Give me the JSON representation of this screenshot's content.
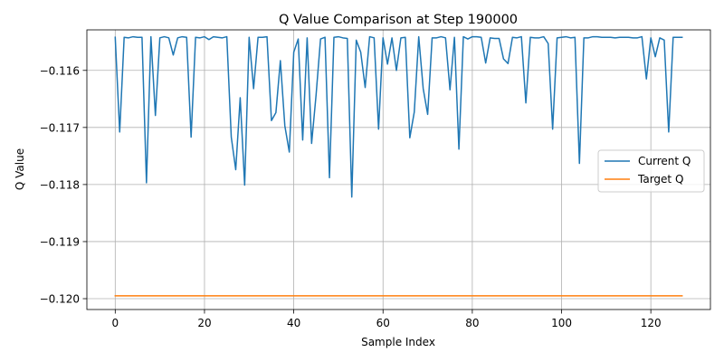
{
  "chart_data": {
    "type": "line",
    "title": "Q Value Comparison at Step 190000",
    "xlabel": "Sample Index",
    "ylabel": "Q Value",
    "xlim": [
      -6.35,
      133.35
    ],
    "ylim": [
      -0.12019,
      -0.11529
    ],
    "xticks": [
      0,
      20,
      40,
      60,
      80,
      100,
      120
    ],
    "xtick_labels": [
      "0",
      "20",
      "40",
      "60",
      "80",
      "100",
      "120"
    ],
    "yticks": [
      -0.12,
      -0.119,
      -0.118,
      -0.117,
      -0.116
    ],
    "ytick_labels": [
      "−0.120",
      "−0.119",
      "−0.118",
      "−0.117",
      "−0.116"
    ],
    "grid": true,
    "legend_position": "center-right",
    "series": [
      {
        "name": "Current Q",
        "color": "#1f77b4",
        "x_start": 0,
        "values": [
          -0.11542,
          -0.11708,
          -0.11542,
          -0.11543,
          -0.11541,
          -0.11542,
          -0.11542,
          -0.11797,
          -0.11541,
          -0.11679,
          -0.11543,
          -0.11541,
          -0.11543,
          -0.11573,
          -0.11543,
          -0.11541,
          -0.11542,
          -0.11717,
          -0.11542,
          -0.11543,
          -0.11541,
          -0.11546,
          -0.11541,
          -0.11542,
          -0.11543,
          -0.11541,
          -0.11717,
          -0.11774,
          -0.11648,
          -0.11801,
          -0.11542,
          -0.11632,
          -0.11542,
          -0.11542,
          -0.11541,
          -0.11688,
          -0.11674,
          -0.11583,
          -0.11697,
          -0.11743,
          -0.11568,
          -0.11545,
          -0.11722,
          -0.11543,
          -0.11728,
          -0.11643,
          -0.11545,
          -0.11542,
          -0.11788,
          -0.11542,
          -0.11541,
          -0.11543,
          -0.11544,
          -0.11822,
          -0.11547,
          -0.11568,
          -0.1163,
          -0.11541,
          -0.11543,
          -0.11703,
          -0.11543,
          -0.11589,
          -0.11543,
          -0.116,
          -0.11543,
          -0.11542,
          -0.11718,
          -0.11673,
          -0.11541,
          -0.11632,
          -0.11677,
          -0.11543,
          -0.11543,
          -0.11541,
          -0.11543,
          -0.11634,
          -0.11542,
          -0.11738,
          -0.11541,
          -0.11545,
          -0.11541,
          -0.11541,
          -0.11542,
          -0.11587,
          -0.11543,
          -0.11544,
          -0.11544,
          -0.1158,
          -0.11588,
          -0.11542,
          -0.11543,
          -0.11541,
          -0.11657,
          -0.11542,
          -0.11543,
          -0.11543,
          -0.11541,
          -0.11553,
          -0.11703,
          -0.11543,
          -0.11542,
          -0.11541,
          -0.11543,
          -0.11542,
          -0.11763,
          -0.11543,
          -0.11543,
          -0.11541,
          -0.11541,
          -0.11542,
          -0.11542,
          -0.11542,
          -0.11543,
          -0.11542,
          -0.11542,
          -0.11542,
          -0.11543,
          -0.11543,
          -0.11541,
          -0.11615,
          -0.11543,
          -0.11576,
          -0.11543,
          -0.11547,
          -0.11708,
          -0.11542,
          -0.11542,
          -0.11542
        ]
      },
      {
        "name": "Target Q",
        "color": "#ff7f0e",
        "x": [
          0,
          127
        ],
        "values": [
          -0.11995,
          -0.11995
        ]
      }
    ]
  }
}
